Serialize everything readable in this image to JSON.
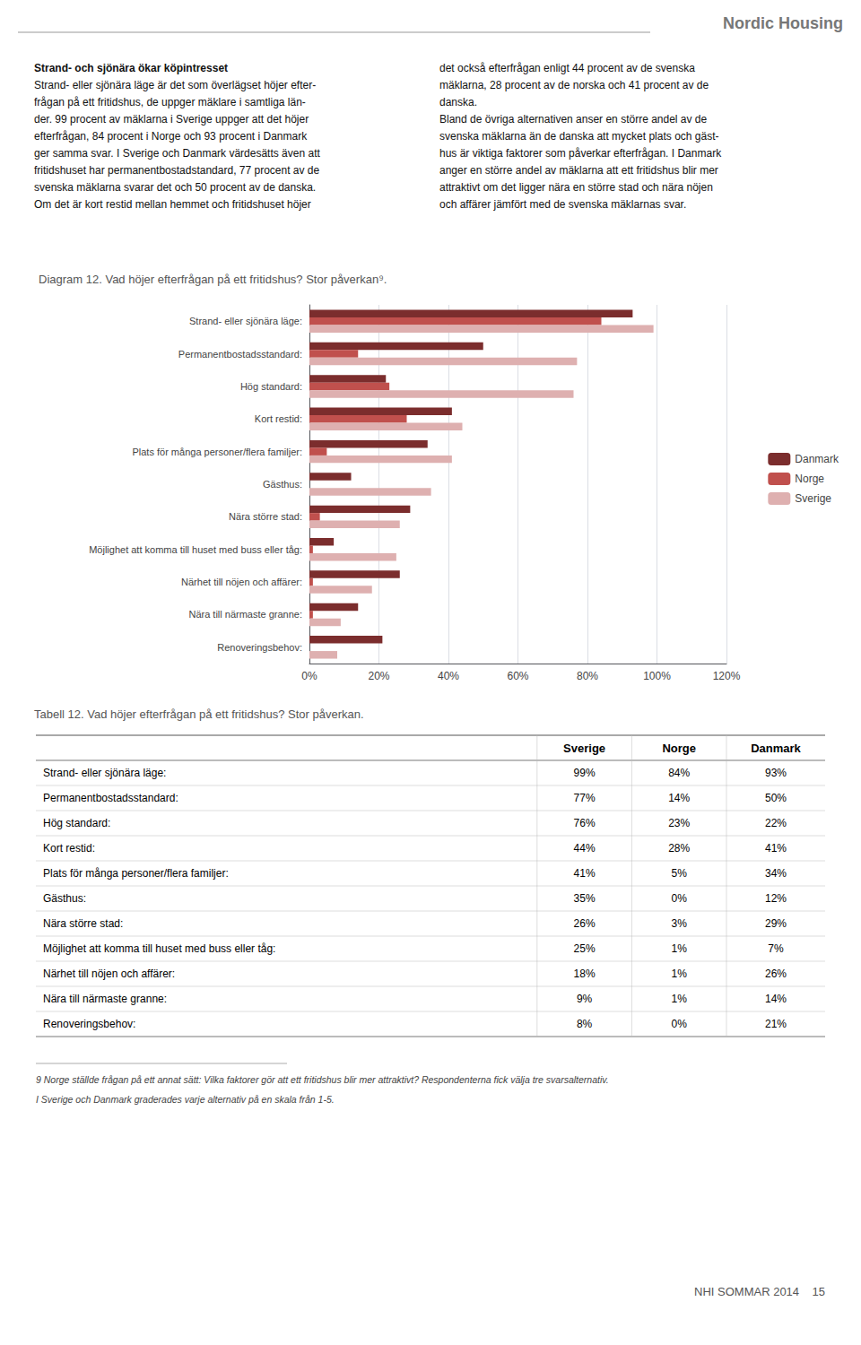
{
  "chart_data": [
    {
      "type": "bar",
      "orientation": "horizontal",
      "title": "Diagram 12. Vad höjer efterfrågan på ett fritidshus? Stor påverkan⁹.",
      "annotations": [
        "Nordic Housing",
        "Strand- och sjönära ökar köpintresset",
        "Strand- eller sjönära läge är det som överlägset höjer efter-",
        "frågan på ett fritidshus, de uppger mäklare i samtliga län-",
        "der. 99 procent av mäklarna i Sverige uppger att det höjer",
        "efterfrågan, 84 procent i Norge och 93 procent i Danmark",
        "ger samma svar. I Sverige och Danmark värdesätts även att",
        "fritidshuset har permanentbostadstandard, 77 procent av de",
        "svenska mäklarna svarar det och 50 procent av de danska.",
        "Om det är kort restid mellan hemmet och fritidshuset höjer",
        "det också efterfrågan enligt 44 procent av de svenska",
        "mäklarna, 28 procent av de norska och 41 procent av de",
        "danska.",
        "Bland de övriga alternativen anser en större andel av de",
        "svenska mäklarna än de danska att mycket plats och gäst-",
        "hus är viktiga faktorer som påverkar efterfrågan. I Danmark",
        "anger en större andel av mäklarna att ett fritidshus blir mer",
        "attraktivt om det ligger nära en större stad och nära nöjen",
        "och affärer jämfört med de svenska mäklarnas svar."
      ],
      "categories": [
        "Strand- eller sjönära läge:",
        "Permanentbostadsstandard:",
        "Hög standard:",
        "Kort restid:",
        "Plats för många personer/flera familjer:",
        "Gästhus:",
        "Nära större stad:",
        "Möjlighet att komma till huset med buss eller tåg:",
        "Närhet till nöjen och affärer:",
        "Nära till närmaste granne:",
        "Renoveringsbehov:"
      ],
      "series": [
        {
          "name": "Danmark",
          "color": "#7B2D2D",
          "values": [
            93,
            50,
            22,
            41,
            34,
            12,
            29,
            7,
            26,
            14,
            21
          ]
        },
        {
          "name": "Norge",
          "color": "#C0504D",
          "values": [
            84,
            14,
            23,
            28,
            5,
            0,
            3,
            1,
            1,
            1,
            0
          ]
        },
        {
          "name": "Sverige",
          "color": "#DEB0B0",
          "values": [
            99,
            77,
            76,
            44,
            41,
            35,
            26,
            25,
            18,
            9,
            8
          ]
        }
      ],
      "xlim": [
        0,
        120
      ],
      "xticks": [
        {
          "value": 0,
          "label": "0%"
        },
        {
          "value": 20,
          "label": "20%"
        },
        {
          "value": 40,
          "label": "40%"
        },
        {
          "value": 60,
          "label": "60%"
        },
        {
          "value": 80,
          "label": "80%"
        },
        {
          "value": 100,
          "label": "100%"
        },
        {
          "value": 120,
          "label": "120%"
        }
      ],
      "grid": true,
      "legend": "right"
    },
    {
      "type": "table",
      "title": "Tabell 12. Vad höjer efterfrågan på ett fritidshus? Stor påverkan.",
      "categories": [
        "Strand- eller sjönära läge:",
        "Permanentbostadsstandard:",
        "Hög standard:",
        "Kort restid:",
        "Plats för många personer/flera familjer:",
        "Gästhus:",
        "Nära större stad:",
        "Möjlighet att komma till huset med buss eller tåg:",
        "Närhet till nöjen och affärer:",
        "Nära till närmaste granne:",
        "Renoveringsbehov:"
      ],
      "series": [
        {
          "name": "Sverige",
          "values": [
            99,
            77,
            76,
            44,
            41,
            35,
            26,
            25,
            18,
            9,
            8
          ],
          "value_labels": [
            "99%",
            "77%",
            "76%",
            "44%",
            "41%",
            "35%",
            "26%",
            "25%",
            "18%",
            "9%",
            "8%"
          ]
        },
        {
          "name": "Norge",
          "values": [
            84,
            14,
            23,
            28,
            5,
            0,
            3,
            1,
            1,
            1,
            0
          ],
          "value_labels": [
            "84%",
            "14%",
            "23%",
            "28%",
            "5%",
            "0%",
            "3%",
            "1%",
            "1%",
            "1%",
            "0%"
          ]
        },
        {
          "name": "Danmark",
          "values": [
            93,
            50,
            22,
            41,
            34,
            12,
            29,
            7,
            26,
            14,
            21
          ],
          "value_labels": [
            "93%",
            "50%",
            "22%",
            "41%",
            "34%",
            "12%",
            "29%",
            "7%",
            "26%",
            "14%",
            "21%"
          ]
        }
      ],
      "annotations": [
        "9 Norge ställde frågan på ett annat sätt: Vilka faktorer gör att ett fritidshus blir mer attraktivt? Respondenterna fick välja tre svarsalternativ.",
        "I Sverige och Danmark graderades varje alternativ på en skala från 1-5.",
        "NHI SOMMAR 2014    15"
      ]
    }
  ]
}
